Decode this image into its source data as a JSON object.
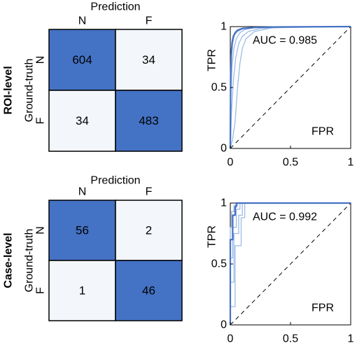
{
  "chart_data": [
    {
      "type": "heatmap",
      "panel": "confusion-matrix",
      "row_group_label": "ROI-level",
      "title": "Prediction",
      "ylabel": "Ground-truth",
      "col_labels": [
        "N",
        "F"
      ],
      "row_labels": [
        "N",
        "F"
      ],
      "values": [
        [
          604,
          34
        ],
        [
          34,
          483
        ]
      ],
      "colors": {
        "high": "#4472c4",
        "low": "#f3f6fb",
        "border": "#000000"
      }
    },
    {
      "type": "line",
      "panel": "roc",
      "row_group_label": "ROI-level",
      "xlabel": "FPR",
      "ylabel": "TPR",
      "annotation": "AUC = 0.985",
      "xlim": [
        0,
        1
      ],
      "ylim": [
        0,
        1
      ],
      "xticks": [
        "0",
        "0.5",
        "1"
      ],
      "yticks": [
        "0",
        "0.5",
        "1"
      ],
      "diagonal": "dashed",
      "series": [
        {
          "x": [
            0,
            0.003,
            0.008,
            0.015,
            0.025,
            0.04,
            0.06,
            0.1,
            0.2,
            0.4,
            0.7,
            1
          ],
          "y": [
            0,
            0.6,
            0.78,
            0.87,
            0.92,
            0.95,
            0.97,
            0.985,
            0.993,
            0.997,
            0.999,
            1
          ],
          "emphasis": "main"
        },
        {
          "x": [
            0,
            0.006,
            0.015,
            0.03,
            0.05,
            0.08,
            0.12,
            0.2,
            0.4,
            1
          ],
          "y": [
            0,
            0.45,
            0.68,
            0.82,
            0.9,
            0.95,
            0.975,
            0.99,
            0.997,
            1
          ]
        },
        {
          "x": [
            0,
            0.01,
            0.025,
            0.045,
            0.07,
            0.1,
            0.15,
            0.25,
            0.5,
            1
          ],
          "y": [
            0,
            0.3,
            0.55,
            0.74,
            0.86,
            0.92,
            0.96,
            0.985,
            0.996,
            1
          ]
        },
        {
          "x": [
            0,
            0.02,
            0.04,
            0.06,
            0.08,
            0.1,
            0.13,
            0.2,
            0.35,
            1
          ],
          "y": [
            0,
            0.08,
            0.22,
            0.5,
            0.7,
            0.82,
            0.9,
            0.96,
            0.99,
            1
          ]
        },
        {
          "x": [
            0,
            0.004,
            0.01,
            0.02,
            0.035,
            0.06,
            0.1,
            0.2,
            1
          ],
          "y": [
            0,
            0.55,
            0.75,
            0.86,
            0.93,
            0.96,
            0.98,
            0.993,
            1
          ]
        }
      ],
      "colors": {
        "curve": "#4472c4",
        "curve_light": "#9dbbe6"
      }
    },
    {
      "type": "heatmap",
      "panel": "confusion-matrix",
      "row_group_label": "Case-level",
      "title": "Prediction",
      "ylabel": "Ground-truth",
      "col_labels": [
        "N",
        "F"
      ],
      "row_labels": [
        "N",
        "F"
      ],
      "values": [
        [
          56,
          2
        ],
        [
          1,
          46
        ]
      ],
      "colors": {
        "high": "#4472c4",
        "low": "#f3f6fb",
        "border": "#000000"
      }
    },
    {
      "type": "line",
      "panel": "roc",
      "row_group_label": "Case-level",
      "xlabel": "FPR",
      "ylabel": "TPR",
      "annotation": "AUC = 0.992",
      "xlim": [
        0,
        1
      ],
      "ylim": [
        0,
        1
      ],
      "xticks": [
        "0",
        "0.5",
        "1"
      ],
      "yticks": [
        "0",
        "0.5",
        "1"
      ],
      "diagonal": "dashed",
      "series": [
        {
          "x": [
            0,
            0,
            0.02,
            0.02,
            0.04,
            0.04,
            0.05,
            0.05,
            1
          ],
          "y": [
            0,
            0.7,
            0.7,
            0.9,
            0.9,
            0.97,
            0.97,
            1,
            1
          ],
          "emphasis": "main"
        },
        {
          "x": [
            0,
            0,
            0.02,
            0.02,
            0.05,
            0.05,
            0.08,
            0.08,
            1
          ],
          "y": [
            0,
            0.55,
            0.55,
            0.8,
            0.8,
            0.95,
            0.95,
            1,
            1
          ]
        },
        {
          "x": [
            0,
            0,
            0.03,
            0.03,
            0.07,
            0.07,
            0.1,
            0.1,
            1
          ],
          "y": [
            0,
            0.35,
            0.35,
            0.75,
            0.75,
            0.9,
            0.9,
            1,
            1
          ]
        },
        {
          "x": [
            0,
            0,
            0.04,
            0.04,
            0.09,
            0.09,
            0.12,
            0.12,
            1
          ],
          "y": [
            0,
            0.15,
            0.15,
            0.65,
            0.65,
            0.88,
            0.88,
            1,
            1
          ]
        },
        {
          "x": [
            0,
            0,
            0.01,
            0.01,
            0.03,
            0.03,
            0.06,
            0.06,
            1
          ],
          "y": [
            0,
            0.8,
            0.8,
            0.93,
            0.93,
            0.98,
            0.98,
            1,
            1
          ]
        }
      ],
      "colors": {
        "curve": "#4472c4",
        "curve_light": "#9dbbe6"
      }
    }
  ]
}
